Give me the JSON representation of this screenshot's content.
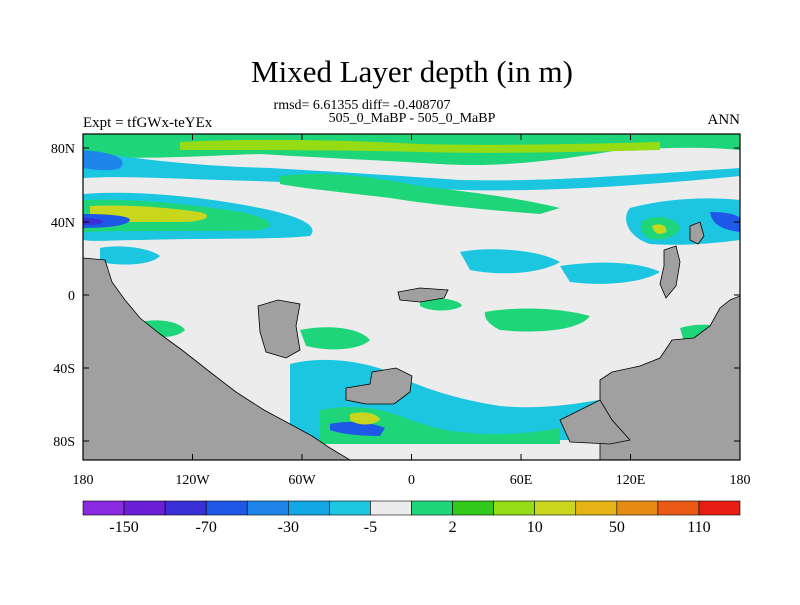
{
  "chart_data": {
    "type": "heatmap",
    "title": "Mixed Layer depth (in m)",
    "subtitle_stats": "rmsd= 6.61355 diff= -0.408707",
    "subtitle_runs": "505_0_MaBP - 505_0_MaBP",
    "left_label": "Expt = tfGWx-teYEx",
    "right_label": "ANN",
    "x_ticks": [
      "180",
      "120W",
      "60W",
      "0",
      "60E",
      "120E",
      "180"
    ],
    "y_ticks": [
      "80N",
      "40N",
      "0",
      "40S",
      "80S"
    ],
    "xlim": [
      -180,
      180
    ],
    "ylim": [
      -90,
      90
    ],
    "colorbar": {
      "labels": [
        "-150",
        "-70",
        "-30",
        "-5",
        "2",
        "10",
        "50",
        "110"
      ],
      "colors": [
        "#8a2be2",
        "#6a1fd6",
        "#3a2fd8",
        "#1e58e6",
        "#1e86ea",
        "#14a7e6",
        "#1cc6e0",
        "#ececec",
        "#1fd57a",
        "#33c91a",
        "#96dc14",
        "#c8d61e",
        "#e6b414",
        "#e68a14",
        "#ea5a14",
        "#e61e14"
      ]
    },
    "colors": {
      "land": "#a0a0a0",
      "background_field": "#ececec"
    }
  }
}
